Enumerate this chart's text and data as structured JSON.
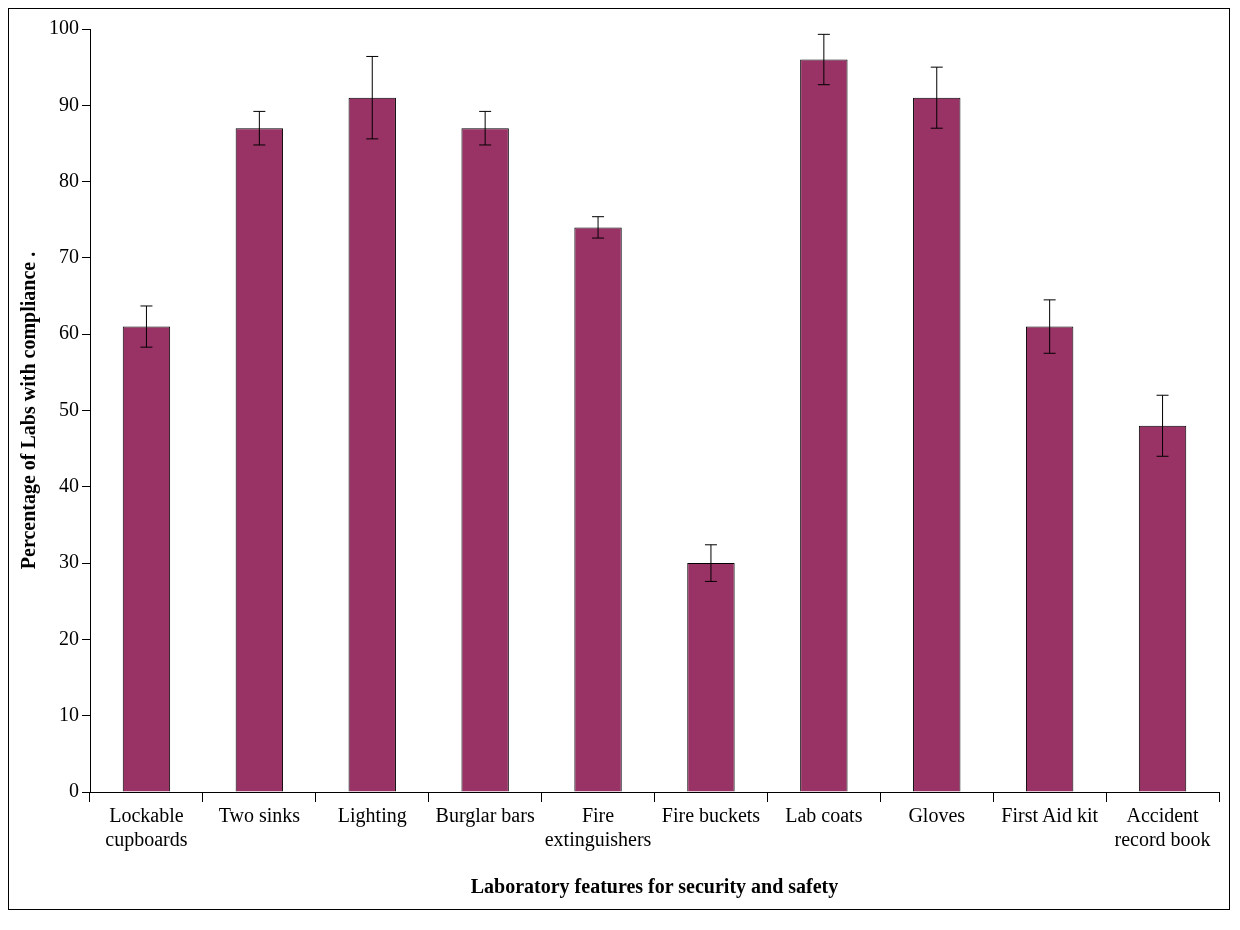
{
  "chart_data": {
    "type": "bar",
    "xlabel": "Laboratory features for security and safety",
    "ylabel": "Percentage of Labs with compliance .",
    "categories": [
      "Lockable cupboards",
      "Two sinks",
      "Lighting",
      "Burglar bars",
      "Fire extinguishers",
      "Fire buckets",
      "Lab coats",
      "Gloves",
      "First Aid kit",
      "Accident record book"
    ],
    "values": [
      61,
      87,
      91,
      87,
      74,
      30,
      96,
      91,
      61,
      48
    ],
    "errors": [
      2.7,
      2.2,
      5.4,
      2.2,
      1.4,
      2.4,
      3.3,
      4,
      3.5,
      4
    ],
    "color": "#993366",
    "ylim": [
      0,
      100
    ],
    "yticks": [
      0,
      10,
      20,
      30,
      40,
      50,
      60,
      70,
      80,
      90,
      100
    ],
    "grid": false,
    "legend": false
  }
}
